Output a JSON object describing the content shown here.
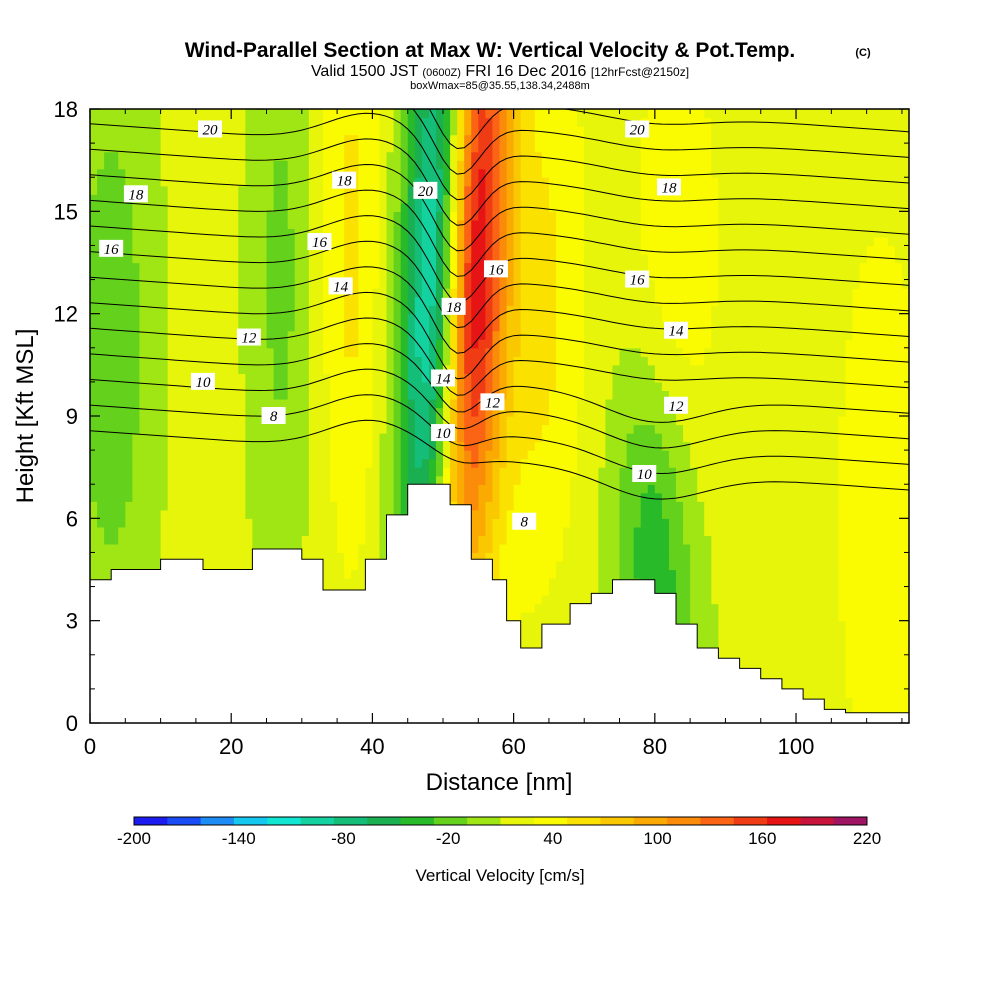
{
  "title": {
    "main": "Wind-Parallel Section at Max W: Vertical Velocity & Pot.Temp.",
    "copyright": "(C)",
    "valid_prefix": "Valid 1500 JST",
    "valid_utc": "(0600Z)",
    "valid_date": "FRI 16 Dec 2016",
    "forecast": "[12hrFcst@2150z]",
    "box": "boxWmax=85@35.55,138.34,2488m"
  },
  "chart_data": {
    "type": "heatmap",
    "xlabel": "Distance [nm]",
    "ylabel": "Height [Kft MSL]",
    "xlim": [
      0,
      116
    ],
    "ylim": [
      0,
      18
    ],
    "x_ticks": [
      0,
      20,
      40,
      60,
      80,
      100
    ],
    "y_ticks": [
      0,
      3,
      6,
      9,
      12,
      15,
      18
    ],
    "grid": false,
    "colorbar": {
      "title": "Vertical Velocity [cm/s]",
      "tick_labels": [
        "-200",
        "-140",
        "-80",
        "-20",
        "40",
        "100",
        "160",
        "220"
      ],
      "min": -200,
      "max": 220,
      "step": 20,
      "colors": [
        "#1c1cf0",
        "#1a4cf5",
        "#1e8cf5",
        "#14c8f0",
        "#10e6d2",
        "#14d2a0",
        "#14be78",
        "#1aaf50",
        "#28ba28",
        "#64d21c",
        "#a0e614",
        "#e6f50a",
        "#fafa00",
        "#fae100",
        "#fac800",
        "#faaa00",
        "#fa8c0a",
        "#fa6414",
        "#f03c14",
        "#e61414",
        "#c8143c",
        "#a01464",
        "#6e148c"
      ]
    },
    "topography": [
      [
        0,
        4.2
      ],
      [
        3,
        4.2
      ],
      [
        3,
        4.5
      ],
      [
        10,
        4.5
      ],
      [
        10,
        4.8
      ],
      [
        16,
        4.8
      ],
      [
        16,
        4.5
      ],
      [
        23,
        4.5
      ],
      [
        23,
        5.1
      ],
      [
        30,
        5.1
      ],
      [
        30,
        4.8
      ],
      [
        33,
        4.8
      ],
      [
        33,
        3.9
      ],
      [
        39,
        3.9
      ],
      [
        39,
        4.8
      ],
      [
        42,
        4.8
      ],
      [
        42,
        6.1
      ],
      [
        45,
        6.1
      ],
      [
        45,
        7.0
      ],
      [
        51,
        7.0
      ],
      [
        51,
        6.4
      ],
      [
        54,
        6.4
      ],
      [
        54,
        4.8
      ],
      [
        57,
        4.8
      ],
      [
        57,
        4.2
      ],
      [
        59,
        4.2
      ],
      [
        59,
        3.0
      ],
      [
        61,
        3.0
      ],
      [
        61,
        2.2
      ],
      [
        64,
        2.2
      ],
      [
        64,
        2.9
      ],
      [
        68,
        2.9
      ],
      [
        68,
        3.5
      ],
      [
        71,
        3.5
      ],
      [
        71,
        3.8
      ],
      [
        74,
        3.8
      ],
      [
        74,
        4.2
      ],
      [
        80,
        4.2
      ],
      [
        80,
        3.8
      ],
      [
        83,
        3.8
      ],
      [
        83,
        2.9
      ],
      [
        86,
        2.9
      ],
      [
        86,
        2.2
      ],
      [
        89,
        2.2
      ],
      [
        89,
        1.9
      ],
      [
        92,
        1.9
      ],
      [
        92,
        1.6
      ],
      [
        95,
        1.6
      ],
      [
        95,
        1.3
      ],
      [
        98,
        1.3
      ],
      [
        98,
        1.0
      ],
      [
        101,
        1.0
      ],
      [
        101,
        0.7
      ],
      [
        104,
        0.7
      ],
      [
        104,
        0.4
      ],
      [
        107,
        0.4
      ],
      [
        107,
        0.3
      ],
      [
        116,
        0.3
      ]
    ],
    "velocity_features": [
      {
        "x": 49,
        "y": 13,
        "sx": 3.2,
        "sy": 7,
        "value": -170,
        "tilt": -0.17
      },
      {
        "x": 54,
        "y": 13.5,
        "sx": 3.5,
        "sy": 7,
        "value": 200,
        "tilt": -0.17
      },
      {
        "x": 64,
        "y": 12,
        "sx": 4.5,
        "sy": 6,
        "value": 40,
        "tilt": -0.1
      },
      {
        "x": 80,
        "y": 5,
        "sx": 4,
        "sy": 4,
        "value": -60,
        "tilt": 0.2
      },
      {
        "x": 83,
        "y": 14,
        "sx": 5,
        "sy": 5,
        "value": 30,
        "tilt": 0
      },
      {
        "x": 3,
        "y": 11,
        "sx": 4,
        "sy": 6,
        "value": -40,
        "tilt": 0
      },
      {
        "x": 37,
        "y": 14,
        "sx": 3,
        "sy": 7,
        "value": 40,
        "tilt": 0
      },
      {
        "x": 27,
        "y": 13,
        "sx": 3,
        "sy": 6,
        "value": -30,
        "tilt": 0
      },
      {
        "x": 112,
        "y": 6,
        "sx": 5,
        "sy": 7,
        "value": 30,
        "tilt": 0
      }
    ],
    "contours": {
      "levels": [
        7,
        8,
        9,
        10,
        11,
        12,
        13,
        14,
        15,
        16,
        17,
        18,
        19,
        20,
        21
      ],
      "labels": [
        {
          "text": "20",
          "x": 17,
          "y": 17.4
        },
        {
          "text": "18",
          "x": 6.5,
          "y": 15.5
        },
        {
          "text": "16",
          "x": 3,
          "y": 13.9
        },
        {
          "text": "18",
          "x": 36,
          "y": 15.9
        },
        {
          "text": "16",
          "x": 32.5,
          "y": 14.1
        },
        {
          "text": "14",
          "x": 35.5,
          "y": 12.8
        },
        {
          "text": "12",
          "x": 22.5,
          "y": 11.3
        },
        {
          "text": "10",
          "x": 16,
          "y": 10.0
        },
        {
          "text": "8",
          "x": 26,
          "y": 9.0
        },
        {
          "text": "20",
          "x": 47.5,
          "y": 15.6
        },
        {
          "text": "18",
          "x": 51.5,
          "y": 12.2
        },
        {
          "text": "16",
          "x": 57.5,
          "y": 13.3
        },
        {
          "text": "14",
          "x": 50,
          "y": 10.1
        },
        {
          "text": "12",
          "x": 57,
          "y": 9.4
        },
        {
          "text": "10",
          "x": 50,
          "y": 8.5
        },
        {
          "text": "8",
          "x": 61.5,
          "y": 5.9
        },
        {
          "text": "20",
          "x": 77.5,
          "y": 17.4
        },
        {
          "text": "18",
          "x": 82,
          "y": 15.7
        },
        {
          "text": "16",
          "x": 77.5,
          "y": 13.0
        },
        {
          "text": "14",
          "x": 83,
          "y": 11.5
        },
        {
          "text": "12",
          "x": 83,
          "y": 9.3
        },
        {
          "text": "10",
          "x": 78.5,
          "y": 7.3
        }
      ]
    }
  }
}
